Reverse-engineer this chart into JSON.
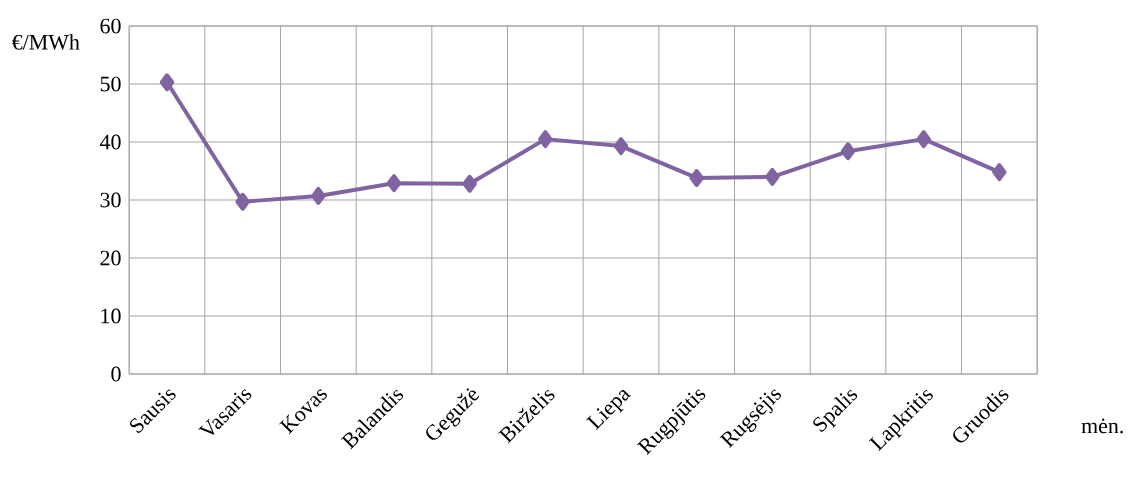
{
  "chart_data": {
    "type": "line",
    "ylabel": "€/MWh",
    "xlabel": "mėn.",
    "categories": [
      "Sausis",
      "Vasaris",
      "Kovas",
      "Balandis",
      "Gegužė",
      "Birželis",
      "Liepa",
      "Rugpjūtis",
      "Rugsėjis",
      "Spalis",
      "Lapkritis",
      "Gruodis"
    ],
    "values": [
      50.3,
      29.7,
      30.7,
      32.9,
      32.8,
      40.5,
      39.3,
      33.8,
      34.0,
      38.4,
      40.5,
      34.8
    ],
    "color": "#8064a2",
    "marker": "diamond",
    "line_style": "solid",
    "grid": true,
    "ylim": [
      0,
      60
    ],
    "yticks": [
      0,
      10,
      20,
      30,
      40,
      50,
      60
    ]
  }
}
